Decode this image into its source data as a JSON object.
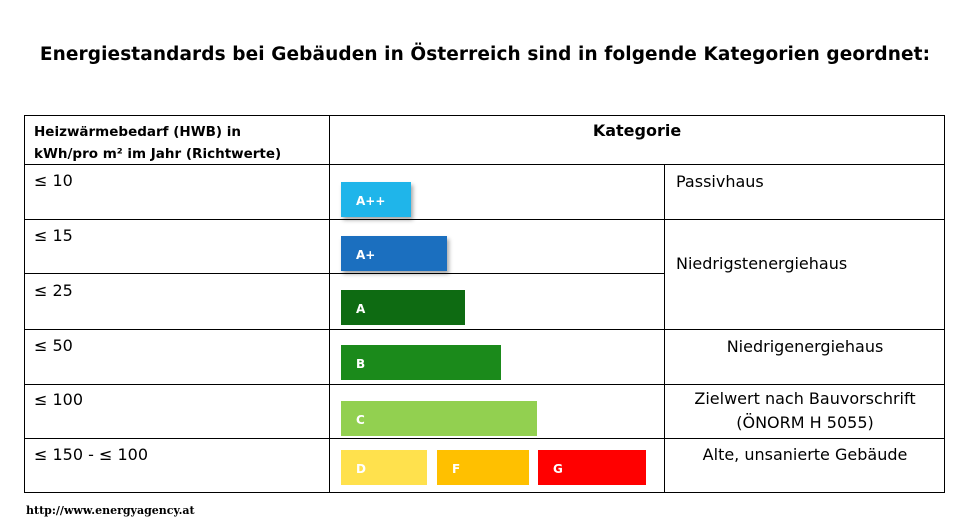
{
  "title": "Energiestandards bei Gebäuden in Österreich sind in folgende Kategorien geordnet:",
  "table": {
    "header_left": [
      "Heizwärmebedarf (HWB) in",
      "kWh/pro m² im Jahr (Richtwerte)"
    ],
    "header_right": "Kategorie",
    "rows": [
      {
        "hwb": "≤ 10"
      },
      {
        "hwb": "≤ 15"
      },
      {
        "hwb": "≤ 25"
      },
      {
        "hwb": "≤ 50"
      },
      {
        "hwb": "≤ 100"
      },
      {
        "hwb": "≤ 150 - ≤ 100"
      }
    ],
    "bars": [
      {
        "label": "A++",
        "color": "#1fb5ea"
      },
      {
        "label": "A+",
        "color": "#1b6fbf"
      },
      {
        "label": "A",
        "color": "#0e6b12"
      },
      {
        "label": "B",
        "color": "#1b8a1b"
      },
      {
        "label": "C",
        "color": "#92d050"
      },
      {
        "label": "D",
        "color": "#ffe14d"
      },
      {
        "label": "F",
        "color": "#ffc000"
      },
      {
        "label": "G",
        "color": "#ff0000"
      }
    ],
    "categories": {
      "passivhaus": "Passivhaus",
      "niedrigstenergiehaus": "Niedrigstenergiehaus",
      "niedrigenergiehaus": "Niedrigenergiehaus",
      "zielwert": [
        "Zielwert nach Bauvorschrift",
        "(ÖNORM H 5055)"
      ],
      "alte": "Alte, unsanierte Gebäude"
    }
  },
  "source": "http://www.energyagency.at"
}
